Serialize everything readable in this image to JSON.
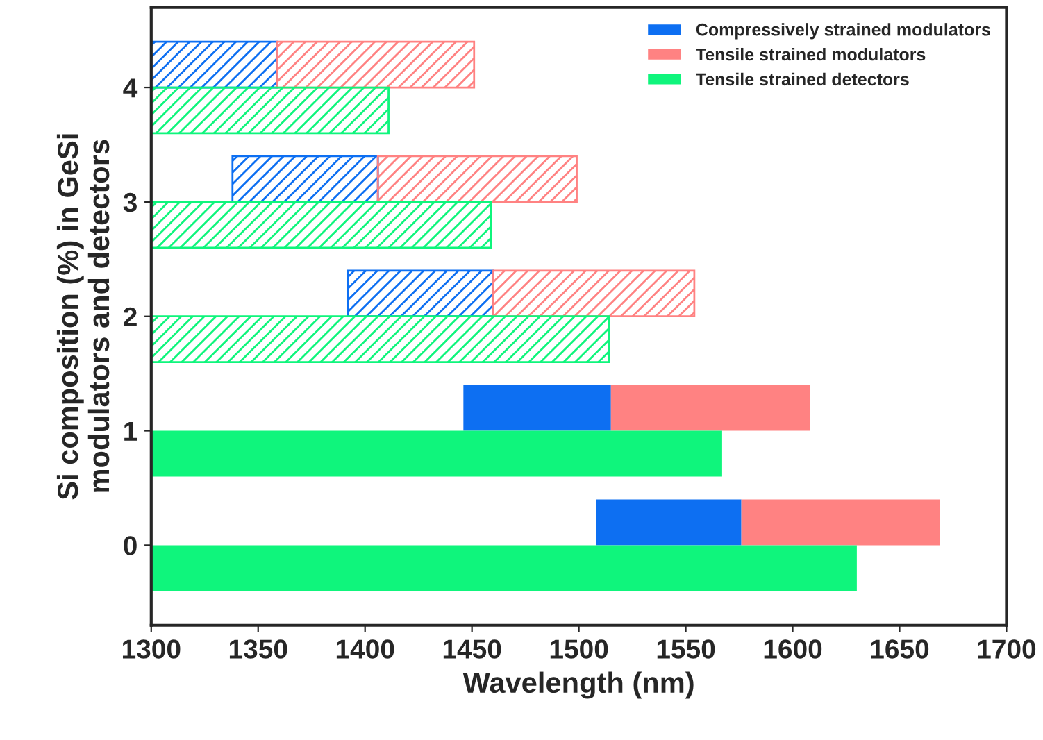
{
  "chart_data": {
    "type": "bar",
    "orientation": "horizontal",
    "xlabel": "Wavelength (nm)",
    "ylabel": "Si composition (%) in GeSi\nmodulators and detectors",
    "categories": [
      "4",
      "3",
      "2",
      "1",
      "0"
    ],
    "xlim": [
      1300,
      1700
    ],
    "xticks": [
      1300,
      1350,
      1400,
      1450,
      1500,
      1550,
      1600,
      1650,
      1700
    ],
    "legend": "top right",
    "grid": false,
    "series": [
      {
        "name": "Compressively strained modulators",
        "color": "#0d6ff2",
        "base": [
          null,
          null,
          null,
          1446,
          1508
        ],
        "values": [
          null,
          null,
          null,
          69,
          68
        ]
      },
      {
        "color": "#0d6ff2",
        "base": [
          1300,
          1338,
          1392,
          null,
          null
        ],
        "values": [
          59,
          68,
          68,
          null,
          null
        ]
      },
      {
        "name": "Tensile strained modulators",
        "color": "#ff8282",
        "base": [
          null,
          null,
          null,
          1515,
          1576
        ],
        "values": [
          null,
          null,
          null,
          93,
          93
        ]
      },
      {
        "color": "#ff8282",
        "base": [
          1359,
          1406,
          1460,
          null,
          null
        ],
        "values": [
          92,
          93,
          94,
          null,
          null
        ]
      },
      {
        "name": "Tensile strained detectors",
        "color": "#0ff57c",
        "values": [
          null,
          null,
          null,
          1567,
          1630
        ]
      },
      {
        "color": "#0ff57c",
        "values": [
          1411,
          1459,
          1514,
          null,
          null
        ]
      }
    ]
  }
}
